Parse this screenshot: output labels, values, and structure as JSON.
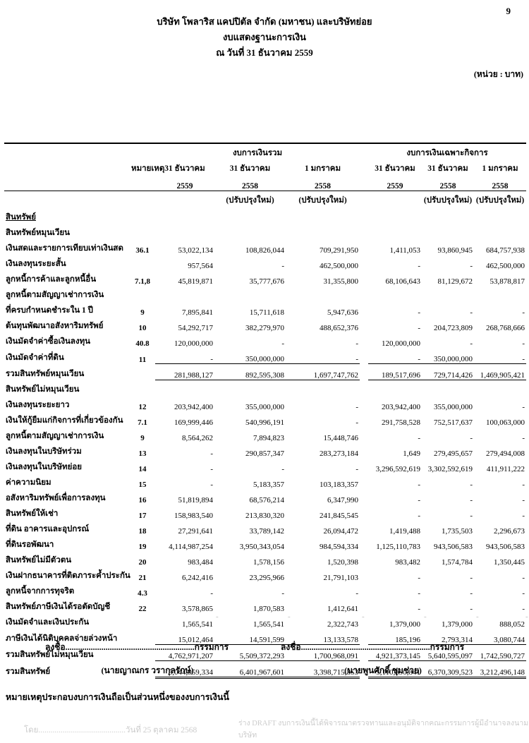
{
  "page": {
    "number": "9",
    "unit_label": "(หน่วย : บาท)"
  },
  "title": {
    "company": "บริษัท โพลาริส แคปปิตัล จำกัด (มหาชน) และบริษัทย่อย",
    "statement": "งบแสดงฐานะการเงิน",
    "as_of_date": "ณ วันที่ 31 ธันวาคม 2559"
  },
  "table": {
    "note_col_header": "หมายเหตุ",
    "groups": [
      {
        "label": "งบการเงินรวม"
      },
      {
        "label": "งบการเงินเฉพาะกิจการ"
      }
    ],
    "column_headers": [
      {
        "date": "31 ธันวาคม",
        "year": "2559",
        "restated": ""
      },
      {
        "date": "31 ธันวาคม",
        "year": "2558",
        "restated": "(ปรับปรุงใหม่)"
      },
      {
        "date": "1 มกราคม",
        "year": "2558",
        "restated": "(ปรับปรุงใหม่)"
      },
      {
        "date": "31 ธันวาคม",
        "year": "2559",
        "restated": ""
      },
      {
        "date": "31 ธันวาคม",
        "year": "2558",
        "restated": "(ปรับปรุงใหม่)"
      },
      {
        "date": "1 มกราคม",
        "year": "2558",
        "restated": "(ปรับปรุงใหม่)"
      }
    ],
    "assets_heading": "สินทรัพย์",
    "rows": [
      {
        "type": "section",
        "label": "สินทรัพย์หมุนเวียน",
        "note": "",
        "values": [
          "",
          "",
          "",
          "",
          "",
          ""
        ]
      },
      {
        "type": "item",
        "label": "เงินสดและรายการเทียบเท่าเงินสด",
        "note": "36.1",
        "values": [
          "53,022,134",
          "108,826,044",
          "709,291,950",
          "1,411,053",
          "93,860,945",
          "684,757,938"
        ]
      },
      {
        "type": "item",
        "label": "เงินลงทุนระยะสั้น",
        "note": "",
        "values": [
          "957,564",
          "-",
          "462,500,000",
          "-",
          "-",
          "462,500,000"
        ]
      },
      {
        "type": "item",
        "label": "ลูกหนี้การค้าและลูกหนี้อื่น",
        "note": "7.1,8",
        "values": [
          "45,819,871",
          "35,777,676",
          "31,355,800",
          "68,106,643",
          "81,129,672",
          "53,878,817"
        ]
      },
      {
        "type": "item",
        "label": "ลูกหนี้ตามสัญญาเช่าการเงิน",
        "note": "",
        "values": [
          "",
          "",
          "",
          "",
          "",
          ""
        ]
      },
      {
        "type": "item2",
        "label": "ที่ครบกำหนดชำระใน 1 ปี",
        "note": "9",
        "values": [
          "7,895,841",
          "15,711,618",
          "5,947,636",
          "-",
          "-",
          "-"
        ]
      },
      {
        "type": "item",
        "label": "ต้นทุนพัฒนาอสังหาริมทรัพย์",
        "note": "10",
        "values": [
          "54,292,717",
          "382,279,970",
          "488,652,376",
          "-",
          "204,723,809",
          "268,768,666"
        ]
      },
      {
        "type": "item",
        "label": "เงินมัดจำค่าซื้อเงินลงทุน",
        "note": "40.8",
        "values": [
          "120,000,000",
          "-",
          "-",
          "120,000,000",
          "-",
          "-"
        ]
      },
      {
        "type": "item",
        "label": "เงินมัดจำค่าที่ดิน",
        "note": "11",
        "values": [
          "-",
          "350,000,000",
          "-",
          "-",
          "350,000,000",
          "-"
        ],
        "rule": "single"
      },
      {
        "type": "total",
        "label": "รวมสินทรัพย์หมุนเวียน",
        "note": "",
        "values": [
          "281,988,127",
          "892,595,308",
          "1,697,747,762",
          "189,517,696",
          "729,714,426",
          "1,469,905,421"
        ],
        "rule": "single"
      },
      {
        "type": "section",
        "label": "สินทรัพย์ไม่หมุนเวียน",
        "note": "",
        "values": [
          "",
          "",
          "",
          "",
          "",
          ""
        ]
      },
      {
        "type": "item",
        "label": "เงินลงทุนระยะยาว",
        "note": "12",
        "values": [
          "203,942,400",
          "355,000,000",
          "-",
          "203,942,400",
          "355,000,000",
          "-"
        ]
      },
      {
        "type": "item",
        "label": "เงินให้กู้ยืมแก่กิจการที่เกี่ยวข้องกัน",
        "note": "7.1",
        "values": [
          "169,999,446",
          "540,996,191",
          "-",
          "291,758,528",
          "752,517,637",
          "100,063,000"
        ]
      },
      {
        "type": "item",
        "label": "ลูกหนี้ตามสัญญาเช่าการเงิน",
        "note": "9",
        "values": [
          "8,564,262",
          "7,894,823",
          "15,448,746",
          "-",
          "-",
          "-"
        ]
      },
      {
        "type": "item",
        "label": "เงินลงทุนในบริษัทร่วม",
        "note": "13",
        "values": [
          "-",
          "290,857,347",
          "283,273,184",
          "1,649",
          "279,495,657",
          "279,494,008"
        ]
      },
      {
        "type": "item",
        "label": "เงินลงทุนในบริษัทย่อย",
        "note": "14",
        "values": [
          "-",
          "-",
          "-",
          "3,296,592,619",
          "3,302,592,619",
          "411,911,222"
        ]
      },
      {
        "type": "item",
        "label": "ค่าความนิยม",
        "note": "15",
        "values": [
          "-",
          "5,183,357",
          "103,183,357",
          "-",
          "-",
          "-"
        ]
      },
      {
        "type": "item",
        "label": "อสังหาริมทรัพย์เพื่อการลงทุน",
        "note": "16",
        "values": [
          "51,819,894",
          "68,576,214",
          "6,347,990",
          "-",
          "-",
          "-"
        ]
      },
      {
        "type": "item",
        "label": "สินทรัพย์ให้เช่า",
        "note": "17",
        "values": [
          "158,983,540",
          "213,830,320",
          "241,845,545",
          "-",
          "-",
          "-"
        ]
      },
      {
        "type": "item",
        "label": "ที่ดิน อาคารและอุปกรณ์",
        "note": "18",
        "values": [
          "27,291,641",
          "33,789,142",
          "26,094,472",
          "1,419,488",
          "1,735,503",
          "2,296,673"
        ]
      },
      {
        "type": "item",
        "label": "ที่ดินรอพัฒนา",
        "note": "19",
        "values": [
          "4,114,987,254",
          "3,950,343,054",
          "984,594,334",
          "1,125,110,783",
          "943,506,583",
          "943,506,583"
        ]
      },
      {
        "type": "item",
        "label": "สินทรัพย์ไม่มีตัวตน",
        "note": "20",
        "values": [
          "983,484",
          "1,578,156",
          "1,520,398",
          "983,482",
          "1,574,784",
          "1,350,445"
        ]
      },
      {
        "type": "item",
        "label": "เงินฝากธนาคารที่ติดภาระค้ำประกัน",
        "note": "21",
        "values": [
          "6,242,416",
          "23,295,966",
          "21,791,103",
          "-",
          "-",
          "-"
        ]
      },
      {
        "type": "item",
        "label": "ลูกหนี้จากการทุจริต",
        "note": "4.3",
        "values": [
          "-",
          "-",
          "-",
          "-",
          "-",
          "-"
        ]
      },
      {
        "type": "item",
        "label": "สินทรัพย์ภาษีเงินได้รอตัดบัญชี",
        "note": "22",
        "values": [
          "3,578,865",
          "1,870,583",
          "1,412,641",
          "-",
          "-",
          "-"
        ]
      },
      {
        "type": "item",
        "label": "เงินมัดจำและเงินประกัน",
        "note": "",
        "values": [
          "1,565,541",
          "1,565,541",
          "2,322,743",
          "1,379,000",
          "1,379,000",
          "888,052"
        ]
      },
      {
        "type": "item",
        "label": "ภาษีเงินได้นิติบุคคลจ่ายล่วงหน้า",
        "note": "",
        "values": [
          "15,012,464",
          "14,591,599",
          "13,133,578",
          "185,196",
          "2,793,314",
          "3,080,744"
        ],
        "rule": "single"
      },
      {
        "type": "total",
        "label": "รวมสินทรัพย์ไม่หมุนเวียน",
        "note": "",
        "values": [
          "4,762,971,207",
          "5,509,372,293",
          "1,700,968,091",
          "4,921,373,145",
          "5,640,595,097",
          "1,742,590,727"
        ],
        "rule": "single"
      },
      {
        "type": "grand",
        "label": "รวมสินทรัพย์",
        "note": "",
        "values": [
          "5,044,959,334",
          "6,401,967,601",
          "3,398,715,853",
          "5,110,890,841",
          "6,370,309,523",
          "3,212,496,148"
        ],
        "rule": "double"
      }
    ]
  },
  "signatures": {
    "left": {
      "line": "ลงชื่อ.............................................................กรรมการ",
      "name": "(นายญาณกร วรากุลรักษ์)"
    },
    "right": {
      "line": "ลงชื่อ.............................................................กรรมการ",
      "name": "(นายพูนศักดิ์ ชุมช่วย)"
    }
  },
  "footnote": "หมายเหตุประกอบงบการเงินถือเป็นส่วนหนึ่งของงบการเงินนี้",
  "watermarks": {
    "left": "โดย...........................................วันที่ 25 ตุลาคม 2568",
    "right": "ร่าง DRAFT งบการเงินนี้ได้พิจารณาตรวจทานและอนุมัติจากคณะกรรมการผู้มีอำนาจลงนามบริษัท"
  }
}
